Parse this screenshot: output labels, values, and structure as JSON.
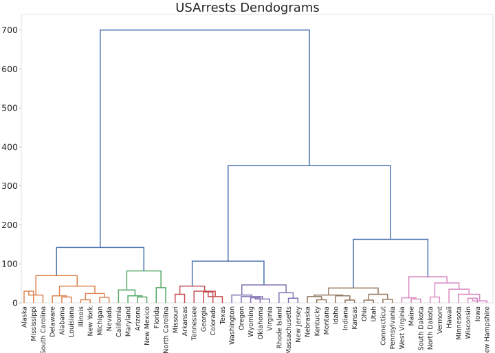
{
  "chart_data": {
    "type": "dendrogram",
    "title": "USArrests Dendograms",
    "xlabel": "",
    "ylabel": "",
    "ylim": [
      0,
      740
    ],
    "yticks": [
      0,
      100,
      200,
      300,
      400,
      500,
      600,
      700
    ],
    "grid": false,
    "leaves": [
      "Alaska",
      "Mississippi",
      "South Carolina",
      "Delaware",
      "Alabama",
      "Louisiana",
      "Illinois",
      "New York",
      "Michigan",
      "Nevada",
      "California",
      "Maryland",
      "Arizona",
      "New Mexico",
      "Florida",
      "North Carolina",
      "Missouri",
      "Arkansas",
      "Tennessee",
      "Georgia",
      "Colorado",
      "Texas",
      "Washington",
      "Oregon",
      "Wyoming",
      "Oklahoma",
      "Virginia",
      "Rhode Island",
      "Massachusetts",
      "New Jersey",
      "Nebraska",
      "Kentucky",
      "Montana",
      "Idaho",
      "Indiana",
      "Kansas",
      "Ohio",
      "Utah",
      "Connecticut",
      "Pennsylvania",
      "West Virginia",
      "Maine",
      "South Dakota",
      "North Dakota",
      "Vermont",
      "Hawaii",
      "Minnesota",
      "Wisconsin",
      "Iowa",
      "New Hampshire"
    ],
    "cluster_colors": {
      "orange": "#dd8452",
      "green": "#55a868",
      "red": "#c44e52",
      "purple": "#8172b3",
      "brown": "#937860",
      "pink": "#da8bc3",
      "above_threshold": "#4c72b0"
    },
    "merges": [
      {
        "a": "L0",
        "b": "L1",
        "h": 30,
        "c": "orange"
      },
      {
        "a": "N0",
        "b": "L2",
        "h": 20,
        "c": "orange"
      },
      {
        "a": "L4",
        "b": "L5",
        "h": 15,
        "c": "orange"
      },
      {
        "a": "L3",
        "b": "N2",
        "h": 18,
        "c": "orange"
      },
      {
        "a": "L6",
        "b": "L7",
        "h": 8,
        "c": "orange"
      },
      {
        "a": "L8",
        "b": "L9",
        "h": 14,
        "c": "orange"
      },
      {
        "a": "N4",
        "b": "N5",
        "h": 24,
        "c": "orange"
      },
      {
        "a": "N3",
        "b": "N6",
        "h": 43,
        "c": "orange"
      },
      {
        "a": "N1",
        "b": "N7",
        "h": 70,
        "c": "orange"
      },
      {
        "a": "L12",
        "b": "L13",
        "h": 15,
        "c": "green"
      },
      {
        "a": "L11",
        "b": "N9",
        "h": 18,
        "c": "green"
      },
      {
        "a": "L10",
        "b": "N10",
        "h": 33,
        "c": "green"
      },
      {
        "a": "L14",
        "b": "L15",
        "h": 39,
        "c": "green"
      },
      {
        "a": "N11",
        "b": "N12",
        "h": 82,
        "c": "green"
      },
      {
        "a": "N8",
        "b": "N13",
        "h": 142,
        "c": "above_threshold"
      },
      {
        "a": "L16",
        "b": "L17",
        "h": 22,
        "c": "red"
      },
      {
        "a": "L19",
        "b": "L20",
        "h": 28,
        "c": "red"
      },
      {
        "a": "N16",
        "b": "L21",
        "h": 16,
        "c": "red"
      },
      {
        "a": "L18",
        "b": "N17",
        "h": 30,
        "c": "red"
      },
      {
        "a": "N15",
        "b": "N18",
        "h": 43,
        "c": "red"
      },
      {
        "a": "L24",
        "b": "L25",
        "h": 13,
        "c": "purple"
      },
      {
        "a": "N20",
        "b": "L26",
        "h": 10,
        "c": "purple"
      },
      {
        "a": "L23",
        "b": "N21",
        "h": 16,
        "c": "purple"
      },
      {
        "a": "L22",
        "b": "N22",
        "h": 20,
        "c": "purple"
      },
      {
        "a": "L28",
        "b": "L29",
        "h": 12,
        "c": "purple"
      },
      {
        "a": "L27",
        "b": "N24",
        "h": 26,
        "c": "purple"
      },
      {
        "a": "N23",
        "b": "N25",
        "h": 46,
        "c": "purple"
      },
      {
        "a": "N19",
        "b": "N26",
        "h": 107,
        "c": "above_threshold"
      },
      {
        "a": "L31",
        "b": "L32",
        "h": 8,
        "c": "brown"
      },
      {
        "a": "L30",
        "b": "N28",
        "h": 16,
        "c": "brown"
      },
      {
        "a": "L34",
        "b": "L35",
        "h": 7,
        "c": "brown"
      },
      {
        "a": "L33",
        "b": "N30",
        "h": 18,
        "c": "brown"
      },
      {
        "a": "N29",
        "b": "N31",
        "h": 20,
        "c": "brown"
      },
      {
        "a": "L36",
        "b": "L37",
        "h": 7,
        "c": "brown"
      },
      {
        "a": "L38",
        "b": "L39",
        "h": 9,
        "c": "brown"
      },
      {
        "a": "N33",
        "b": "N34",
        "h": 22,
        "c": "brown"
      },
      {
        "a": "N32",
        "b": "N35",
        "h": 38,
        "c": "brown"
      },
      {
        "a": "L41",
        "b": "L42",
        "h": 10,
        "c": "pink"
      },
      {
        "a": "L40",
        "b": "N37",
        "h": 13,
        "c": "pink"
      },
      {
        "a": "L43",
        "b": "L44",
        "h": 15,
        "c": "pink"
      },
      {
        "a": "L47",
        "b": "L48",
        "h": 12,
        "c": "pink"
      },
      {
        "a": "N40",
        "b": "L49",
        "h": 5,
        "c": "pink"
      },
      {
        "a": "L46",
        "b": "N41",
        "h": 22,
        "c": "pink"
      },
      {
        "a": "N42",
        "b": "L45",
        "h": 35,
        "c": "pink"
      },
      {
        "a": "N39",
        "b": "N43",
        "h": 51,
        "c": "pink"
      },
      {
        "a": "N38",
        "b": "N44",
        "h": 67,
        "c": "pink"
      },
      {
        "a": "N36",
        "b": "N45",
        "h": 163,
        "c": "above_threshold"
      },
      {
        "a": "N27",
        "b": "N46",
        "h": 352,
        "c": "above_threshold"
      },
      {
        "a": "N14",
        "b": "N47",
        "h": 700,
        "c": "above_threshold"
      }
    ]
  }
}
